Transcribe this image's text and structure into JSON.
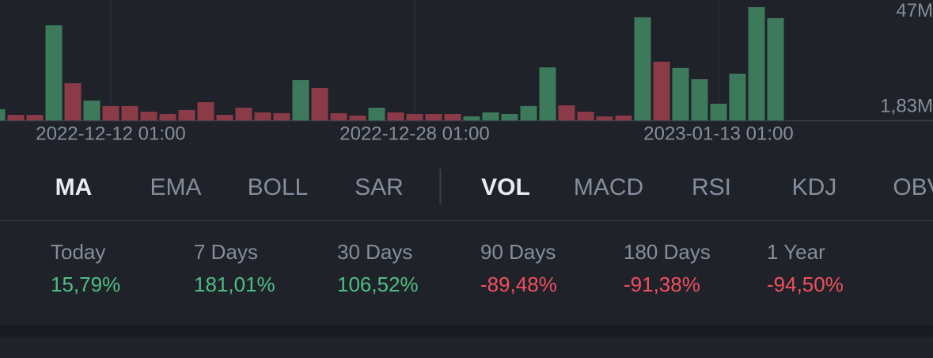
{
  "chart_data": {
    "type": "bar",
    "categories": [
      null,
      null,
      null,
      null,
      null,
      null,
      "2022-12-12 01:00",
      null,
      null,
      null,
      null,
      null,
      null,
      null,
      null,
      null,
      null,
      null,
      null,
      null,
      null,
      null,
      "2022-12-28 01:00",
      null,
      null,
      null,
      null,
      null,
      null,
      null,
      null,
      null,
      null,
      null,
      null,
      null,
      null,
      null,
      "2023-01-13 01:00",
      null,
      null,
      null
    ],
    "values": [
      5.3,
      2.6,
      2.6,
      45,
      17.6,
      9.4,
      6.8,
      6.8,
      4.1,
      3,
      4.9,
      8.6,
      2.6,
      6,
      3.8,
      3.4,
      19.1,
      15.4,
      3.4,
      2.3,
      6,
      3.8,
      3,
      3,
      3,
      1.9,
      3.8,
      3,
      6.8,
      25.1,
      7.1,
      4.1,
      1.9,
      2.3,
      48.8,
      27.8,
      24.8,
      19.5,
      7.9,
      22.1,
      53.6,
      48.4
    ],
    "colors": [
      "#3d7a5c",
      "#8b3a48",
      "#8b3a48",
      "#3d7a5c",
      "#8b3a48",
      "#3d7a5c",
      "#8b3a48",
      "#8b3a48",
      "#8b3a48",
      "#8b3a48",
      "#8b3a48",
      "#8b3a48",
      "#8b3a48",
      "#8b3a48",
      "#8b3a48",
      "#8b3a48",
      "#3d7a5c",
      "#8b3a48",
      "#8b3a48",
      "#8b3a48",
      "#3d7a5c",
      "#8b3a48",
      "#8b3a48",
      "#8b3a48",
      "#8b3a48",
      "#3d7a5c",
      "#3d7a5c",
      "#3d7a5c",
      "#3d7a5c",
      "#3d7a5c",
      "#8b3a48",
      "#8b3a48",
      "#8b3a48",
      "#8b3a48",
      "#3d7a5c",
      "#8b3a48",
      "#3d7a5c",
      "#3d7a5c",
      "#3d7a5c",
      "#3d7a5c",
      "#3d7a5c",
      "#3d7a5c"
    ],
    "ylim": [
      0,
      57
    ],
    "yticks": [
      {
        "value": 47,
        "label": "47M"
      },
      {
        "value": 1.83,
        "label": "1,83M"
      }
    ]
  },
  "indicator_tabs": [
    "MA",
    "EMA",
    "BOLL",
    "SAR"
  ],
  "secondary_tabs": [
    "VOL",
    "MACD",
    "RSI",
    "KDJ",
    "OBV"
  ],
  "stats": [
    {
      "label": "Today",
      "value": "15,79%"
    },
    {
      "label": "7 Days",
      "value": "181,01%"
    },
    {
      "label": "30 Days",
      "value": "106,52%"
    },
    {
      "label": "90 Days",
      "value": "-89,48%"
    },
    {
      "label": "180 Days",
      "value": "-91,38%"
    },
    {
      "label": "1 Year",
      "value": "-94,50%"
    }
  ]
}
